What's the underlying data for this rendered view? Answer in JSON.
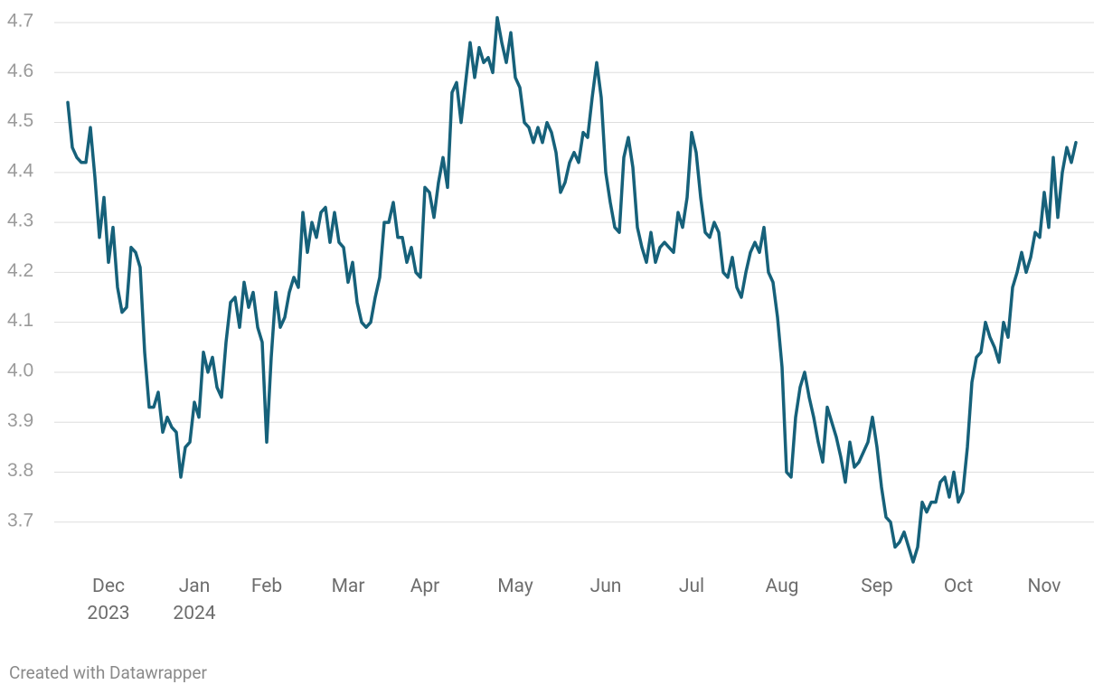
{
  "chart_data": {
    "type": "line",
    "footer": "Created with Datawrapper",
    "color": "#16617a",
    "grid": true,
    "ylim": [
      3.62,
      4.7
    ],
    "yticks": [
      3.7,
      3.8,
      3.9,
      {
        "value": 4,
        "label": "4.0"
      },
      4.1,
      4.2,
      4.3,
      4.4,
      4.5,
      4.6,
      4.7
    ],
    "categories": [
      null,
      null,
      null,
      null,
      null,
      null,
      null,
      null,
      null,
      "Dec 2023",
      null,
      null,
      null,
      null,
      null,
      null,
      null,
      null,
      null,
      null,
      null,
      null,
      null,
      null,
      null,
      null,
      null,
      null,
      "Jan 2024",
      null,
      null,
      null,
      null,
      null,
      null,
      null,
      null,
      null,
      null,
      null,
      null,
      null,
      null,
      null,
      "Feb",
      null,
      null,
      null,
      null,
      null,
      null,
      null,
      null,
      null,
      null,
      null,
      null,
      null,
      null,
      null,
      null,
      null,
      "Mar",
      null,
      null,
      null,
      null,
      null,
      null,
      null,
      null,
      null,
      null,
      null,
      null,
      null,
      null,
      null,
      null,
      "Apr",
      null,
      null,
      null,
      null,
      null,
      null,
      null,
      null,
      null,
      null,
      null,
      null,
      null,
      null,
      null,
      null,
      null,
      null,
      null,
      "May",
      null,
      null,
      null,
      null,
      null,
      null,
      null,
      null,
      null,
      null,
      null,
      null,
      null,
      null,
      null,
      null,
      null,
      null,
      null,
      "Jun",
      null,
      null,
      null,
      null,
      null,
      null,
      null,
      null,
      null,
      null,
      null,
      null,
      null,
      null,
      null,
      null,
      null,
      null,
      "Jul",
      null,
      null,
      null,
      null,
      null,
      null,
      null,
      null,
      null,
      null,
      null,
      null,
      null,
      null,
      null,
      null,
      null,
      null,
      null,
      "Aug",
      null,
      null,
      null,
      null,
      null,
      null,
      null,
      null,
      null,
      null,
      null,
      null,
      null,
      null,
      null,
      null,
      null,
      null,
      null,
      null,
      "Sep",
      null,
      null,
      null,
      null,
      null,
      null,
      null,
      null,
      null,
      null,
      null,
      null,
      null,
      null,
      null,
      null,
      null,
      "Oct",
      null,
      null,
      null,
      null,
      null,
      null,
      null,
      null,
      null,
      null,
      null,
      null,
      null,
      null,
      null,
      null,
      null,
      null,
      "Nov",
      null,
      null,
      null,
      null,
      null,
      null,
      null
    ],
    "values": [
      4.54,
      4.45,
      4.43,
      4.42,
      4.42,
      4.49,
      4.39,
      4.27,
      4.35,
      4.22,
      4.29,
      4.17,
      4.12,
      4.13,
      4.25,
      4.24,
      4.21,
      4.04,
      3.93,
      3.93,
      3.96,
      3.88,
      3.91,
      3.89,
      3.88,
      3.79,
      3.85,
      3.86,
      3.94,
      3.91,
      4.04,
      4.0,
      4.03,
      3.97,
      3.95,
      4.06,
      4.14,
      4.15,
      4.09,
      4.18,
      4.13,
      4.16,
      4.09,
      4.06,
      3.86,
      4.03,
      4.16,
      4.09,
      4.11,
      4.16,
      4.19,
      4.17,
      4.32,
      4.24,
      4.3,
      4.27,
      4.32,
      4.33,
      4.26,
      4.32,
      4.26,
      4.25,
      4.18,
      4.22,
      4.14,
      4.1,
      4.09,
      4.1,
      4.15,
      4.19,
      4.3,
      4.3,
      4.34,
      4.27,
      4.27,
      4.22,
      4.25,
      4.2,
      4.19,
      4.37,
      4.36,
      4.31,
      4.38,
      4.43,
      4.37,
      4.56,
      4.58,
      4.5,
      4.58,
      4.66,
      4.59,
      4.65,
      4.62,
      4.63,
      4.6,
      4.71,
      4.66,
      4.62,
      4.68,
      4.59,
      4.57,
      4.5,
      4.49,
      4.46,
      4.49,
      4.46,
      4.5,
      4.48,
      4.44,
      4.36,
      4.38,
      4.42,
      4.44,
      4.42,
      4.48,
      4.47,
      4.55,
      4.62,
      4.55,
      4.4,
      4.34,
      4.29,
      4.28,
      4.43,
      4.47,
      4.41,
      4.29,
      4.25,
      4.22,
      4.28,
      4.22,
      4.25,
      4.26,
      4.25,
      4.24,
      4.32,
      4.29,
      4.35,
      4.48,
      4.44,
      4.35,
      4.28,
      4.27,
      4.3,
      4.28,
      4.2,
      4.19,
      4.23,
      4.17,
      4.15,
      4.2,
      4.24,
      4.26,
      4.24,
      4.29,
      4.2,
      4.18,
      4.11,
      4.01,
      3.8,
      3.79,
      3.91,
      3.97,
      4.0,
      3.95,
      3.91,
      3.86,
      3.82,
      3.93,
      3.9,
      3.87,
      3.83,
      3.78,
      3.86,
      3.81,
      3.82,
      3.84,
      3.86,
      3.91,
      3.85,
      3.77,
      3.71,
      3.7,
      3.65,
      3.66,
      3.68,
      3.65,
      3.62,
      3.65,
      3.74,
      3.72,
      3.74,
      3.74,
      3.78,
      3.79,
      3.75,
      3.8,
      3.74,
      3.76,
      3.85,
      3.98,
      4.03,
      4.04,
      4.1,
      4.07,
      4.05,
      4.02,
      4.1,
      4.07,
      4.17,
      4.2,
      4.24,
      4.2,
      4.23,
      4.28,
      4.27,
      4.36,
      4.29,
      4.43,
      4.31,
      4.4,
      4.45,
      4.42,
      4.46
    ]
  }
}
